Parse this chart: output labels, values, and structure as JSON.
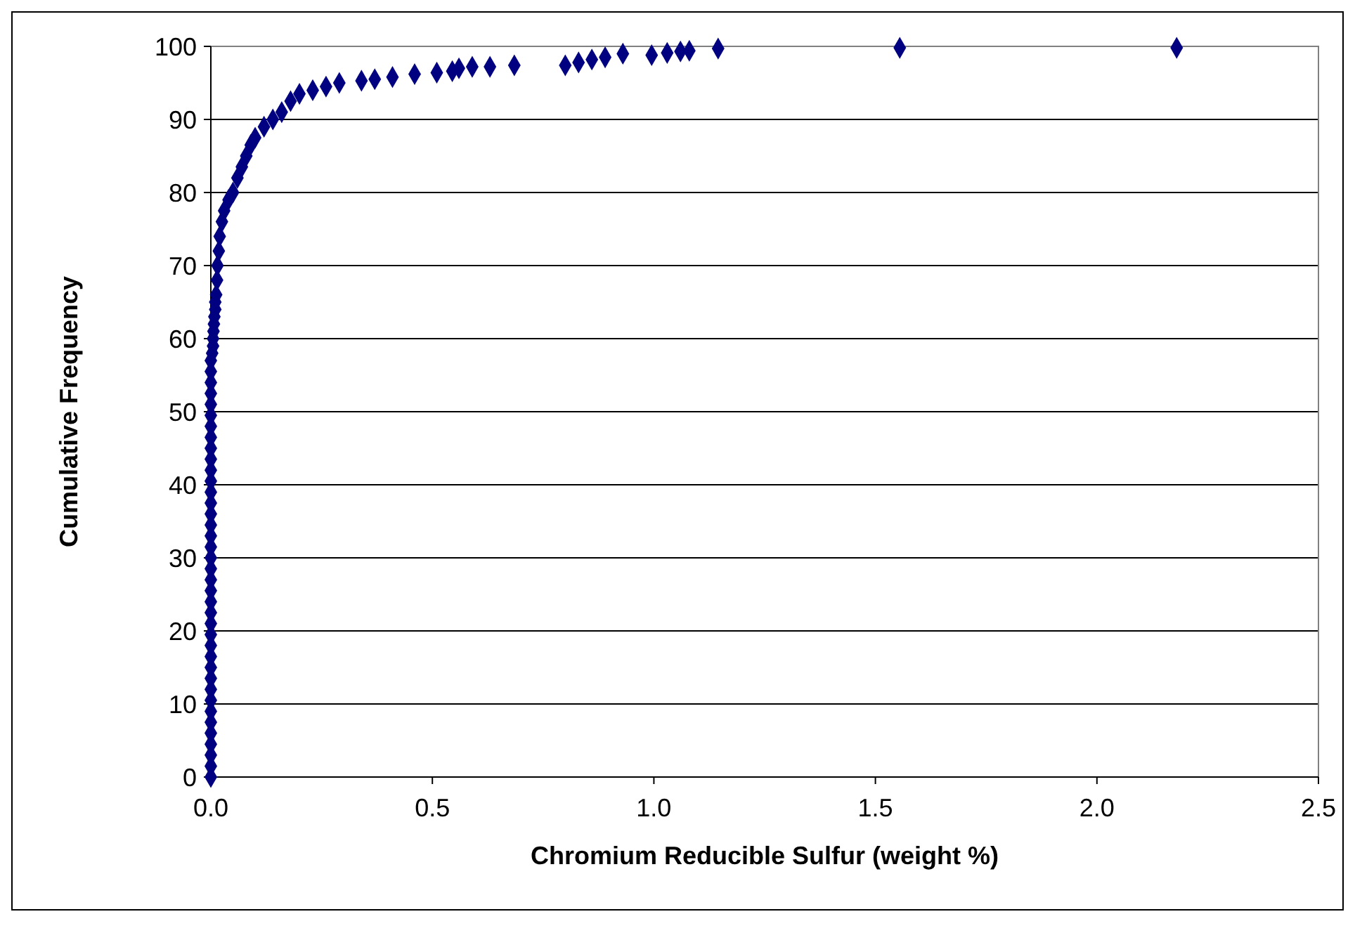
{
  "chart_data": {
    "type": "scatter",
    "xlabel": "Chromium Reducible Sulfur (weight %)",
    "ylabel": "Cumulative Frequency",
    "xlim": [
      0,
      2.5
    ],
    "xticks": [
      {
        "value": 0,
        "label": "0.0"
      },
      {
        "value": 0.5,
        "label": "0.5"
      },
      {
        "value": 1,
        "label": "1.0"
      },
      {
        "value": 1.5,
        "label": "1.5"
      },
      {
        "value": 2,
        "label": "2.0"
      },
      {
        "value": 2.5,
        "label": "2.5"
      }
    ],
    "ylim": [
      0,
      100
    ],
    "yticks": [
      0,
      10,
      20,
      30,
      40,
      50,
      60,
      70,
      80,
      90,
      100
    ],
    "grid": "y",
    "marker": "diamond",
    "series": [
      {
        "color": "#000080",
        "x": [
          0,
          0,
          0,
          0,
          0,
          0,
          0,
          0,
          0,
          0,
          0,
          0,
          0,
          0,
          0,
          0,
          0,
          0,
          0,
          0,
          0,
          0,
          0,
          0,
          0,
          0,
          0,
          0,
          0,
          0,
          0,
          0,
          0,
          0,
          0,
          0,
          0,
          0,
          0,
          0.003,
          0.005,
          0.005,
          0.006,
          0.007,
          0.008,
          0.01,
          0.01,
          0.012,
          0.014,
          0.015,
          0.018,
          0.02,
          0.025,
          0.03,
          0.04,
          0.05,
          0.06,
          0.07,
          0.08,
          0.09,
          0.1,
          0.12,
          0.14,
          0.16,
          0.18,
          0.2,
          0.23,
          0.26,
          0.29,
          0.34,
          0.37,
          0.41,
          0.46,
          0.51,
          0.545,
          0.56,
          0.59,
          0.63,
          0.685,
          0.8,
          0.83,
          0.86,
          0.89,
          0.93,
          0.995,
          1.03,
          1.06,
          1.08,
          1.145,
          1.555,
          2.18
        ],
        "values": [
          0,
          1.5,
          3,
          4.5,
          6,
          7.5,
          9,
          10.5,
          12,
          13.5,
          15,
          16.5,
          18,
          19.5,
          21,
          22.5,
          24,
          25.5,
          27,
          28.5,
          30,
          31.5,
          33,
          34.5,
          36,
          37.5,
          39,
          40.5,
          42,
          43.5,
          45,
          46.5,
          48,
          49.5,
          51,
          52.5,
          54,
          55.5,
          57,
          58,
          59,
          60,
          61,
          62,
          63,
          64,
          65,
          66,
          68,
          70,
          72,
          74,
          76,
          77.5,
          79,
          80,
          82,
          83.5,
          85,
          86.5,
          87.5,
          89,
          90,
          91,
          92.5,
          93.5,
          94,
          94.5,
          95,
          95.3,
          95.5,
          95.8,
          96.2,
          96.4,
          96.6,
          97,
          97.2,
          97.2,
          97.4,
          97.4,
          97.8,
          98.2,
          98.5,
          99,
          98.8,
          99.1,
          99.3,
          99.4,
          99.7,
          99.8,
          99.8
        ]
      }
    ]
  }
}
